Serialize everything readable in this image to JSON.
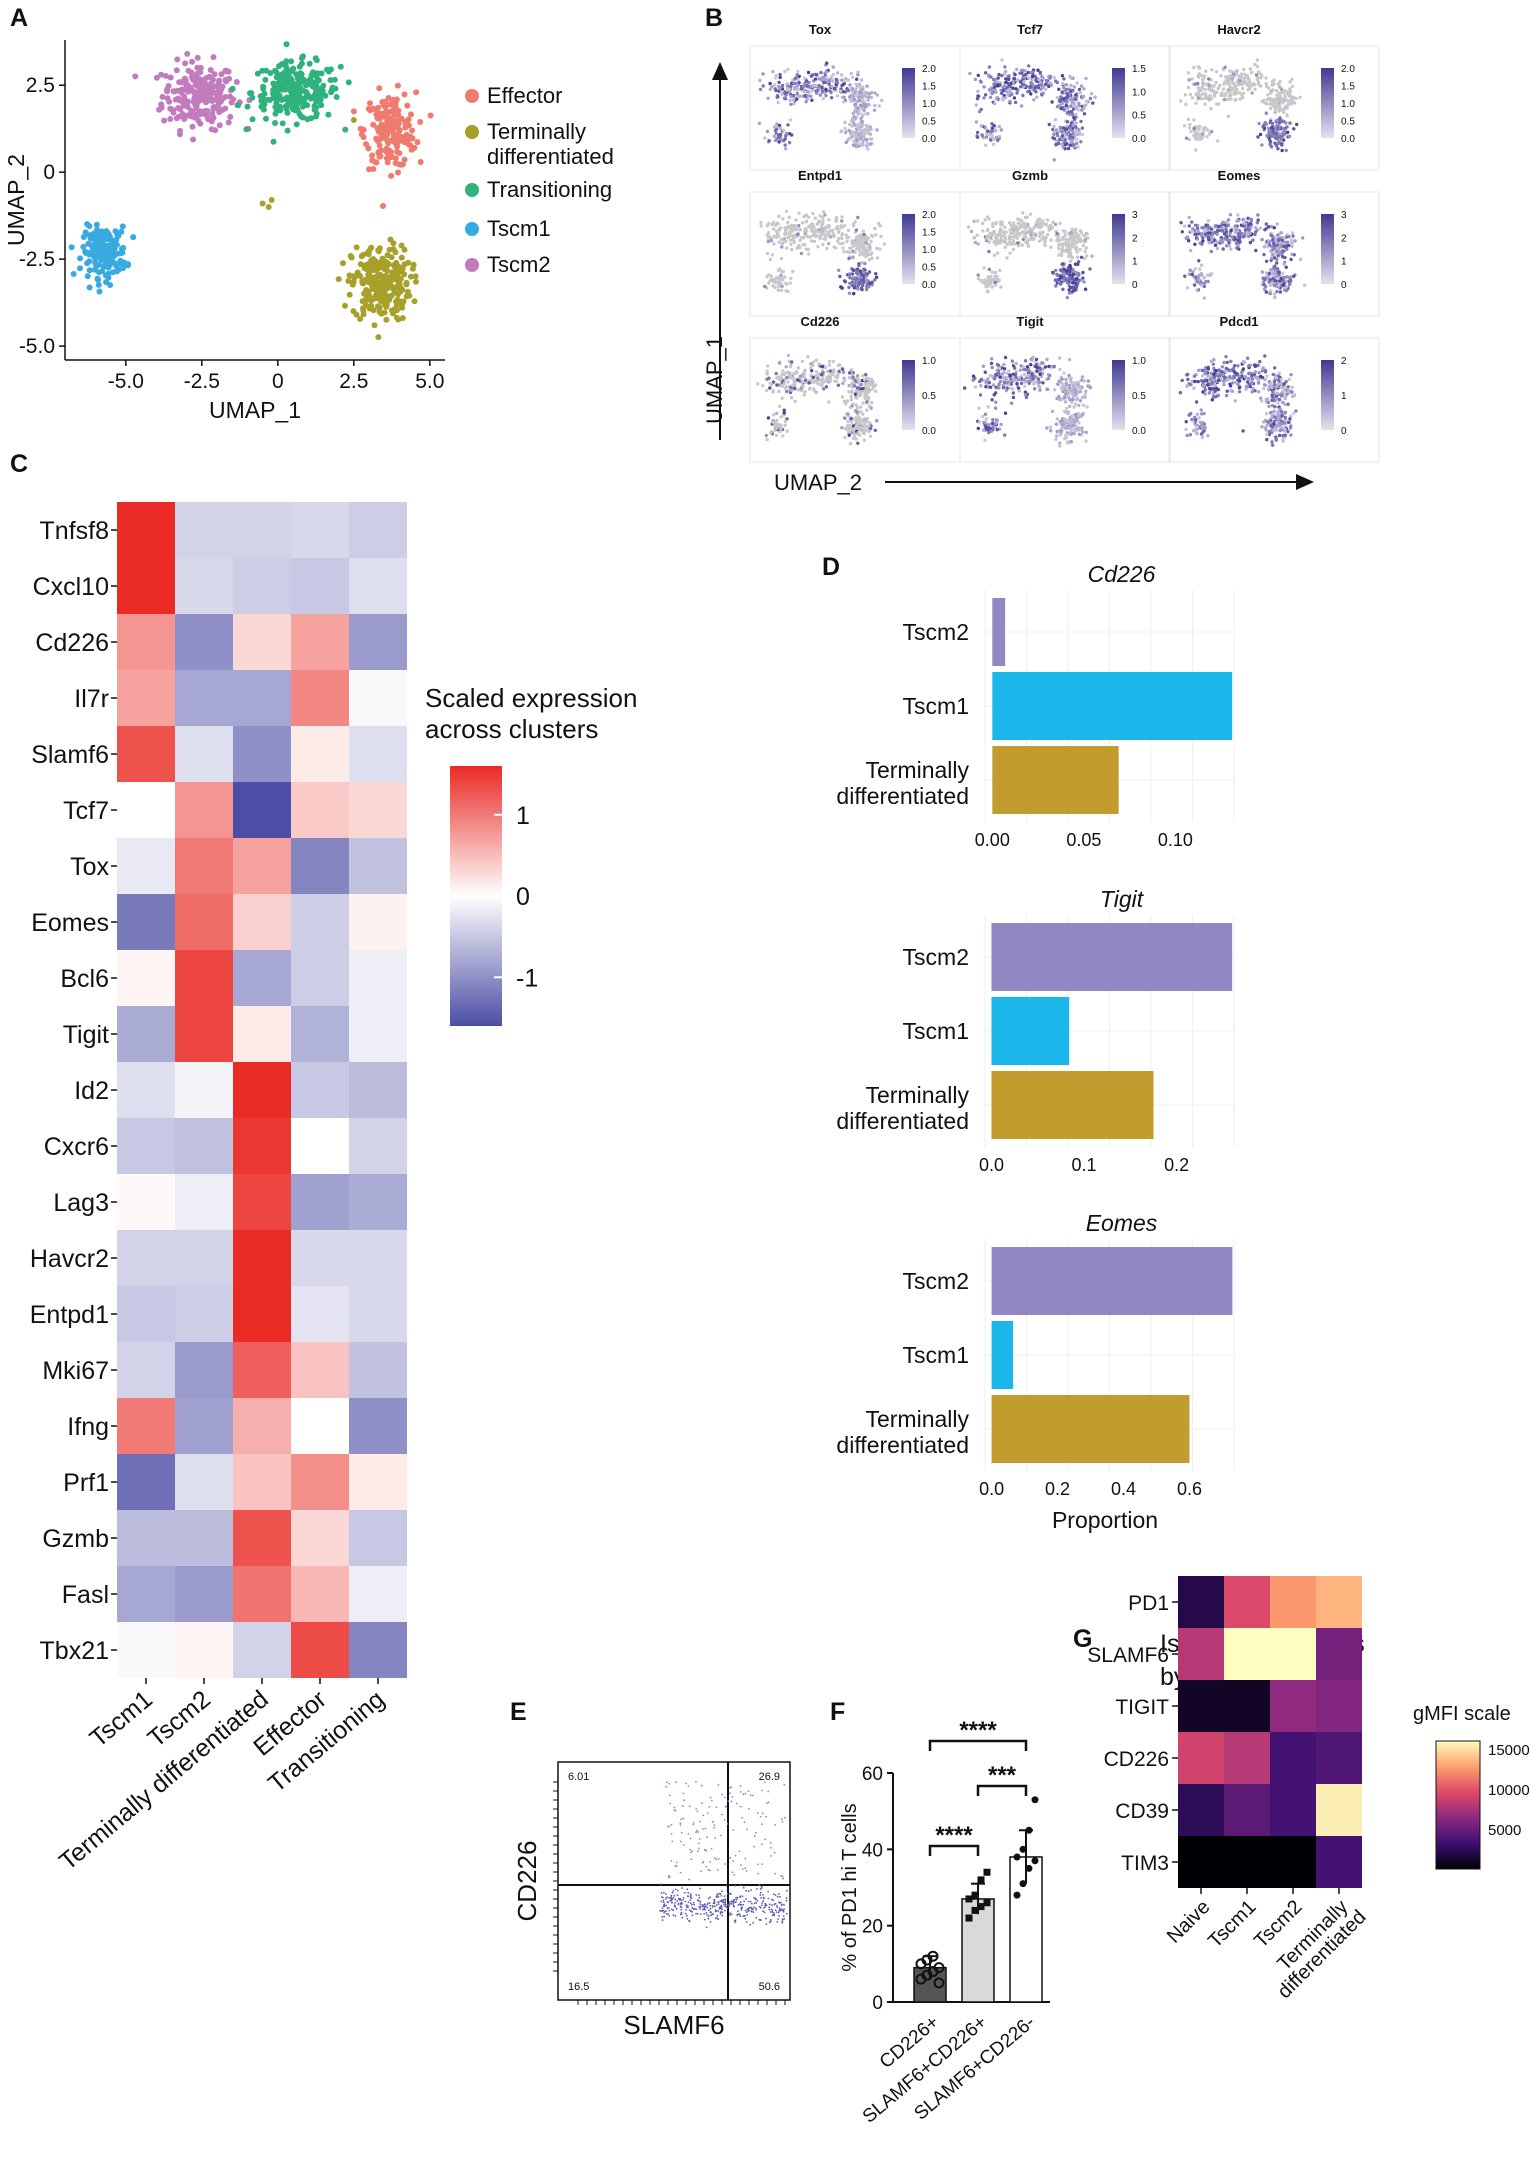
{
  "panels": {
    "A": {
      "letter": "A",
      "chart_data": {
        "type": "scatter",
        "xlabel": "UMAP_1",
        "ylabel": "UMAP_2",
        "xlim": [
          -7,
          5.5
        ],
        "ylim": [
          -5.4,
          3.8
        ],
        "xticks": [
          -5.0,
          -2.5,
          0,
          2.5,
          5.0
        ],
        "xtick_labels": [
          "-5.0",
          "-2.5",
          "0",
          "2.5",
          "5.0"
        ],
        "yticks": [
          2.5,
          0,
          -2.5,
          -5.0
        ],
        "ytick_labels": [
          "2.5",
          "0",
          "-2.5",
          "-5.0"
        ],
        "legend": [
          {
            "label": "Effector",
            "color": "#ef7a6e"
          },
          {
            "label": "Terminally differentiated",
            "color": "#a7a12b"
          },
          {
            "label": "Transitioning",
            "color": "#2fb27c"
          },
          {
            "label": "Tscm1",
            "color": "#39a9e1"
          },
          {
            "label": "Tscm2",
            "color": "#c27bbd"
          }
        ],
        "clusters": [
          {
            "name": "Tscm2",
            "color": "#c27bbd",
            "cx": -2.6,
            "cy": 2.2,
            "sx": 1.0,
            "sy": 0.8,
            "n": 230
          },
          {
            "name": "Transitioning",
            "color": "#2fb27c",
            "cx": 0.6,
            "cy": 2.3,
            "sx": 1.2,
            "sy": 0.7,
            "n": 230
          },
          {
            "name": "Effector",
            "color": "#ef7a6e",
            "cx": 3.7,
            "cy": 1.2,
            "sx": 0.7,
            "sy": 0.9,
            "n": 190
          },
          {
            "name": "Terminally differentiated",
            "color": "#a7a12b",
            "cx": 3.4,
            "cy": -3.2,
            "sx": 0.8,
            "sy": 0.9,
            "n": 260
          },
          {
            "name": "Tscm1",
            "color": "#39a9e1",
            "cx": -5.7,
            "cy": -2.3,
            "sx": 0.6,
            "sy": 0.6,
            "n": 170
          }
        ]
      }
    },
    "B": {
      "letter": "B",
      "xlabel": "UMAP_2",
      "ylabel": "UMAP_1",
      "genes": [
        {
          "name": "Tox",
          "scale": [
            "2.0",
            "1.5",
            "1.0",
            "0.5",
            "0.0"
          ],
          "pattern": "left"
        },
        {
          "name": "Tcf7",
          "scale": [
            "1.5",
            "1.0",
            "0.5",
            "0.0"
          ],
          "pattern": "broad"
        },
        {
          "name": "Havcr2",
          "scale": [
            "2.0",
            "1.5",
            "1.0",
            "0.5",
            "0.0"
          ],
          "pattern": "bottomright"
        },
        {
          "name": "Entpd1",
          "scale": [
            "2.0",
            "1.5",
            "1.0",
            "0.5",
            "0.0"
          ],
          "pattern": "bottomright"
        },
        {
          "name": "Gzmb",
          "scale": [
            "3",
            "2",
            "1",
            "0"
          ],
          "pattern": "bottomright"
        },
        {
          "name": "Eomes",
          "scale": [
            "3",
            "2",
            "1",
            "0"
          ],
          "pattern": "broad"
        },
        {
          "name": "Cd226",
          "scale": [
            "1.0",
            "0.5",
            "0.0"
          ],
          "pattern": "sparse"
        },
        {
          "name": "Tigit",
          "scale": [
            "1.0",
            "0.5",
            "0.0"
          ],
          "pattern": "left"
        },
        {
          "name": "Pdcd1",
          "scale": [
            "2",
            "1",
            "0"
          ],
          "pattern": "broad"
        }
      ]
    },
    "C": {
      "letter": "C",
      "chart_data": {
        "type": "heatmap",
        "legend_title": [
          "Scaled expression",
          "across clusters"
        ],
        "legend_ticks": [
          1,
          0,
          -1
        ],
        "legend_tick_labels": [
          "1",
          "0",
          "-1"
        ],
        "range": [
          -1.6,
          1.6
        ],
        "columns": [
          "Tscm1",
          "Tscm2",
          "Terminally differentiated",
          "Effector",
          "Transitioning"
        ],
        "rows": [
          "Tnfsf8",
          "Cxcl10",
          "Cd226",
          "Il7r",
          "Slamf6",
          "Tcf7",
          "Tox",
          "Eomes",
          "Bcl6",
          "Tigit",
          "Id2",
          "Cxcr6",
          "Lag3",
          "Havcr2",
          "Entpd1",
          "Mki67",
          "Ifng",
          "Prf1",
          "Gzmb",
          "Fasl",
          "Tbx21"
        ],
        "values": [
          [
            1.6,
            -0.4,
            -0.4,
            -0.35,
            -0.45
          ],
          [
            1.6,
            -0.35,
            -0.45,
            -0.5,
            -0.3
          ],
          [
            0.8,
            -1.0,
            0.3,
            0.7,
            -0.9
          ],
          [
            0.7,
            -0.8,
            -0.8,
            0.9,
            -0.05
          ],
          [
            1.3,
            -0.3,
            -1.0,
            0.15,
            -0.3
          ],
          [
            0.0,
            0.8,
            -1.6,
            0.4,
            0.3
          ],
          [
            -0.2,
            1.0,
            0.7,
            -1.1,
            -0.55
          ],
          [
            -1.2,
            1.1,
            0.35,
            -0.45,
            0.1
          ],
          [
            0.08,
            1.4,
            -0.8,
            -0.45,
            -0.15
          ],
          [
            -0.75,
            1.4,
            0.15,
            -0.7,
            -0.15
          ],
          [
            -0.3,
            -0.1,
            1.6,
            -0.5,
            -0.6
          ],
          [
            -0.5,
            -0.55,
            1.5,
            0.0,
            -0.4
          ],
          [
            0.05,
            -0.15,
            1.4,
            -0.85,
            -0.75
          ],
          [
            -0.4,
            -0.4,
            1.6,
            -0.35,
            -0.35
          ],
          [
            -0.5,
            -0.45,
            1.6,
            -0.25,
            -0.35
          ],
          [
            -0.4,
            -0.9,
            1.2,
            0.45,
            -0.55
          ],
          [
            1.0,
            -0.85,
            0.6,
            0.0,
            -1.0
          ],
          [
            -1.3,
            -0.3,
            0.45,
            0.85,
            0.15
          ],
          [
            -0.6,
            -0.6,
            1.3,
            0.3,
            -0.5
          ],
          [
            -0.8,
            -0.9,
            1.05,
            0.55,
            -0.15
          ],
          [
            -0.05,
            0.08,
            -0.4,
            1.35,
            -1.1
          ]
        ]
      }
    },
    "D": {
      "letter": "D",
      "xlabel": "Proportion",
      "chart_data": [
        {
          "type": "bar",
          "title": "Cd226",
          "orientation": "horizontal",
          "categories": [
            "Tscm2",
            "Tscm1",
            "Terminally differentiated"
          ],
          "values": [
            0.007,
            0.131,
            0.069
          ],
          "xlim": [
            -0.004,
            0.132
          ],
          "xticks": [
            0,
            0.05,
            0.1
          ],
          "xtick_labels": [
            "0.00",
            "0.05",
            "0.10"
          ]
        },
        {
          "type": "bar",
          "title": "Tigit",
          "orientation": "horizontal",
          "categories": [
            "Tscm2",
            "Tscm1",
            "Terminally differentiated"
          ],
          "values": [
            0.26,
            0.084,
            0.175
          ],
          "xlim": [
            -0.007,
            0.262
          ],
          "xticks": [
            0,
            0.1,
            0.2
          ],
          "xtick_labels": [
            "0.0",
            "0.1",
            "0.2"
          ]
        },
        {
          "type": "bar",
          "title": "Eomes",
          "orientation": "horizontal",
          "categories": [
            "Tscm2",
            "Tscm1",
            "Terminally differentiated"
          ],
          "values": [
            0.73,
            0.065,
            0.6
          ],
          "xlim": [
            -0.02,
            0.735
          ],
          "xticks": [
            0,
            0.2,
            0.4,
            0.6
          ],
          "xtick_labels": [
            "0.0",
            "0.2",
            "0.4",
            "0.6"
          ]
        }
      ],
      "colors": {
        "Tscm2": "#9287c2",
        "Tscm1": "#1bb7ea",
        "Terminally differentiated": "#c29c2d"
      }
    },
    "E": {
      "letter": "E",
      "chart_data": {
        "type": "scatter",
        "xlabel": "SLAMF6",
        "ylabel": "CD226",
        "quadrants": {
          "top_left": "6.01",
          "top_right": "26.9",
          "bottom_left": "16.5",
          "bottom_right": "50.6"
        }
      }
    },
    "F": {
      "letter": "F",
      "chart_data": {
        "type": "bar",
        "ylabel": "% of PD1 hi T cells",
        "categories": [
          "CD226+",
          "SLAMF6+CD226+",
          "SLAMF6+CD226-"
        ],
        "values": [
          9,
          27,
          38
        ],
        "errors": [
          3,
          4,
          7
        ],
        "points": [
          [
            6,
            7,
            8,
            9,
            10,
            11,
            12,
            5
          ],
          [
            22,
            24,
            25,
            26,
            27,
            28,
            32,
            34
          ],
          [
            28,
            31,
            35,
            37,
            38,
            40,
            45,
            53
          ]
        ],
        "bar_colors": [
          "#555555",
          "#d9d9d9",
          "#ffffff"
        ],
        "ylim": [
          0,
          60
        ],
        "yticks": [
          0,
          20,
          40,
          60
        ],
        "ytick_labels": [
          "0",
          "20",
          "40",
          "60"
        ],
        "significance": [
          {
            "from": 0,
            "to": 2,
            "label": "****"
          },
          {
            "from": 1,
            "to": 2,
            "label": "***"
          },
          {
            "from": 0,
            "to": 1,
            "label": "****"
          }
        ]
      }
    },
    "G": {
      "letter": "G",
      "chart_data": {
        "type": "heatmap",
        "title": [
          "Islet T cell subsets",
          "by flow cytometry"
        ],
        "legend_title": "gMFI scale",
        "legend_ticks": [
          15000,
          10000,
          5000
        ],
        "legend_tick_labels": [
          "15000",
          "10000",
          "5000"
        ],
        "range": [
          0,
          16000
        ],
        "columns": [
          "Naive",
          "Tscm1",
          "Tscm2",
          "Terminally differentiated"
        ],
        "rows": [
          "PD1",
          "SLAMF6",
          "TIGIT",
          "CD226",
          "CD39",
          "TIM3"
        ],
        "values": [
          [
            2000,
            9500,
            12500,
            13500
          ],
          [
            8000,
            16000,
            16000,
            5500
          ],
          [
            1000,
            1000,
            6500,
            6000
          ],
          [
            9000,
            8000,
            3500,
            4000
          ],
          [
            2500,
            4500,
            3500,
            15500
          ],
          [
            0,
            0,
            0,
            3500
          ]
        ]
      }
    }
  }
}
